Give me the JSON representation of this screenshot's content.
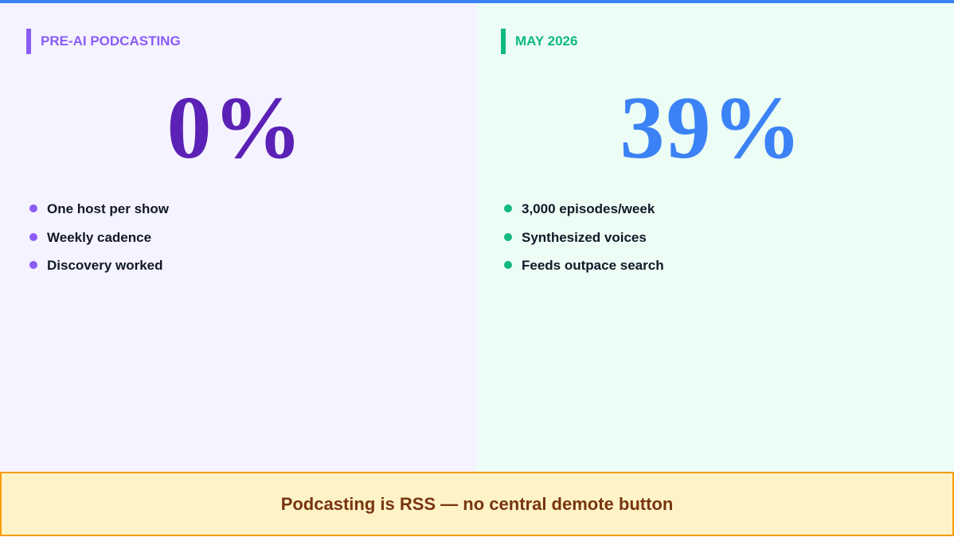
{
  "left": {
    "label": "PRE-AI PODCASTING",
    "stat": "0%",
    "bullets": [
      "One host per show",
      "Weekly cadence",
      "Discovery worked"
    ]
  },
  "right": {
    "label": "MAY 2026",
    "stat": "39%",
    "bullets": [
      "3,000 episodes/week",
      "Synthesized voices",
      "Feeds outpace search"
    ]
  },
  "footer": {
    "text": "Podcasting is RSS — no central demote button"
  }
}
